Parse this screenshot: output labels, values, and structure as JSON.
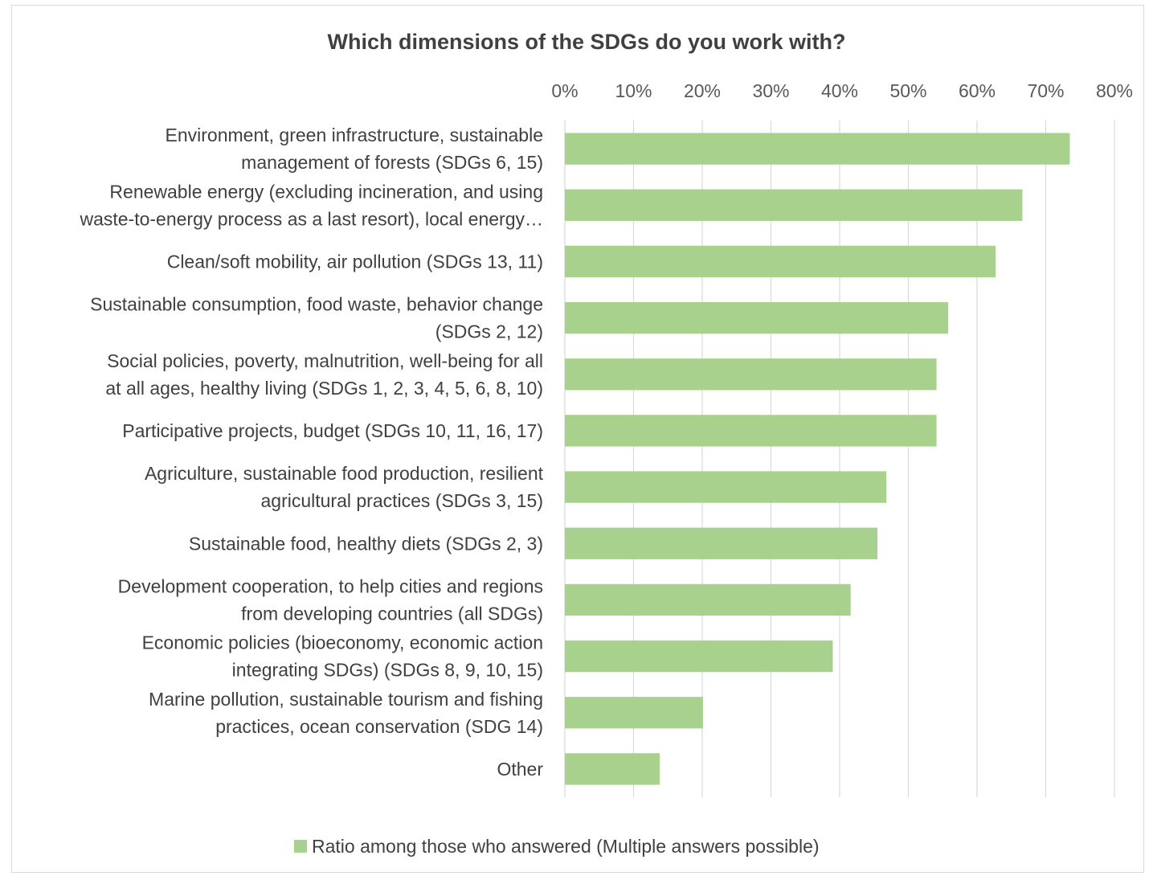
{
  "chart_data": {
    "type": "bar",
    "orientation": "horizontal",
    "title": "Which dimensions of the SDGs do you work with?",
    "xlabel": "",
    "ylabel": "",
    "xlim": [
      0,
      80
    ],
    "tick_values": [
      0,
      10,
      20,
      30,
      40,
      50,
      60,
      70,
      80
    ],
    "tick_labels": [
      "0%",
      "10%",
      "20%",
      "30%",
      "40%",
      "50%",
      "60%",
      "70%",
      "80%"
    ],
    "x_axis_position": "top",
    "grid": true,
    "legend_position": "bottom",
    "bar_color": "#a9d18e",
    "categories": [
      [
        "Environment, green infrastructure, sustainable",
        "management of forests (SDGs 6, 15)"
      ],
      [
        "Renewable energy (excluding incineration, and using",
        "waste-to-energy process as a last resort), local energy…"
      ],
      [
        "Clean/soft mobility, air pollution (SDGs 13, 11)"
      ],
      [
        "Sustainable consumption, food waste, behavior change",
        "(SDGs 2, 12)"
      ],
      [
        "Social policies, poverty, malnutrition, well-being for all",
        "at all ages, healthy living (SDGs 1, 2, 3, 4, 5, 6, 8, 10)"
      ],
      [
        "Participative projects, budget (SDGs 10, 11, 16, 17)"
      ],
      [
        "Agriculture, sustainable food production, resilient",
        "agricultural practices (SDGs 3, 15)"
      ],
      [
        "Sustainable food, healthy diets (SDGs 2, 3)"
      ],
      [
        "Development cooperation, to help cities and regions",
        "from developing countries (all SDGs)"
      ],
      [
        "Economic policies (bioeconomy, economic action",
        "integrating SDGs) (SDGs 8, 9, 10, 15)"
      ],
      [
        "Marine pollution, sustainable tourism and fishing",
        "practices, ocean conservation (SDG 14)"
      ],
      [
        "Other"
      ]
    ],
    "series": [
      {
        "name": "Ratio among those who answered (Multiple answers possible)",
        "values": [
          73.5,
          66.6,
          62.7,
          55.8,
          54.1,
          54.1,
          46.8,
          45.5,
          41.6,
          39.0,
          20.1,
          13.8
        ]
      }
    ]
  }
}
